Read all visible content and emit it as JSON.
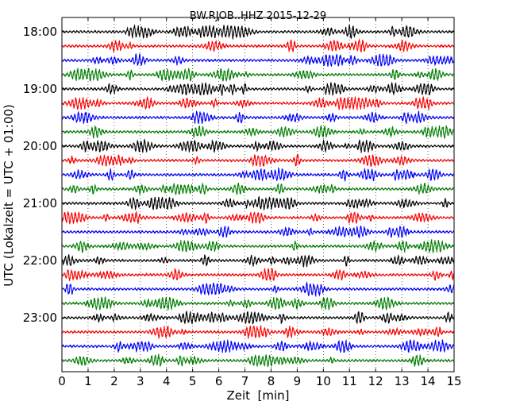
{
  "chart_data": {
    "type": "line",
    "title": "BW.RJOB..HHZ 2015-12-29",
    "xlabel": "Zeit  [min]",
    "ylabel": "UTC (Lokalzeit = UTC + 01:00)",
    "xlim": [
      0,
      15
    ],
    "x_ticks": [
      "0",
      "1",
      "2",
      "3",
      "4",
      "5",
      "6",
      "7",
      "8",
      "9",
      "10",
      "11",
      "12",
      "13",
      "14",
      "15"
    ],
    "y_tick_labels": [
      "18:00",
      "19:00",
      "20:00",
      "21:00",
      "22:00",
      "23:00"
    ],
    "trace_start_times": [
      "18:00",
      "18:15",
      "18:30",
      "18:45",
      "19:00",
      "19:15",
      "19:30",
      "19:45",
      "20:00",
      "20:15",
      "20:30",
      "20:45",
      "21:00",
      "21:15",
      "21:30",
      "21:45",
      "22:00",
      "22:15",
      "22:30",
      "22:45",
      "23:00",
      "23:15",
      "23:30",
      "23:45"
    ],
    "trace_minutes_per_line": 15,
    "trace_color_cycle": [
      "#000000",
      "#ff0000",
      "#0000ff",
      "#008000"
    ],
    "grid": true,
    "legend": "none"
  }
}
